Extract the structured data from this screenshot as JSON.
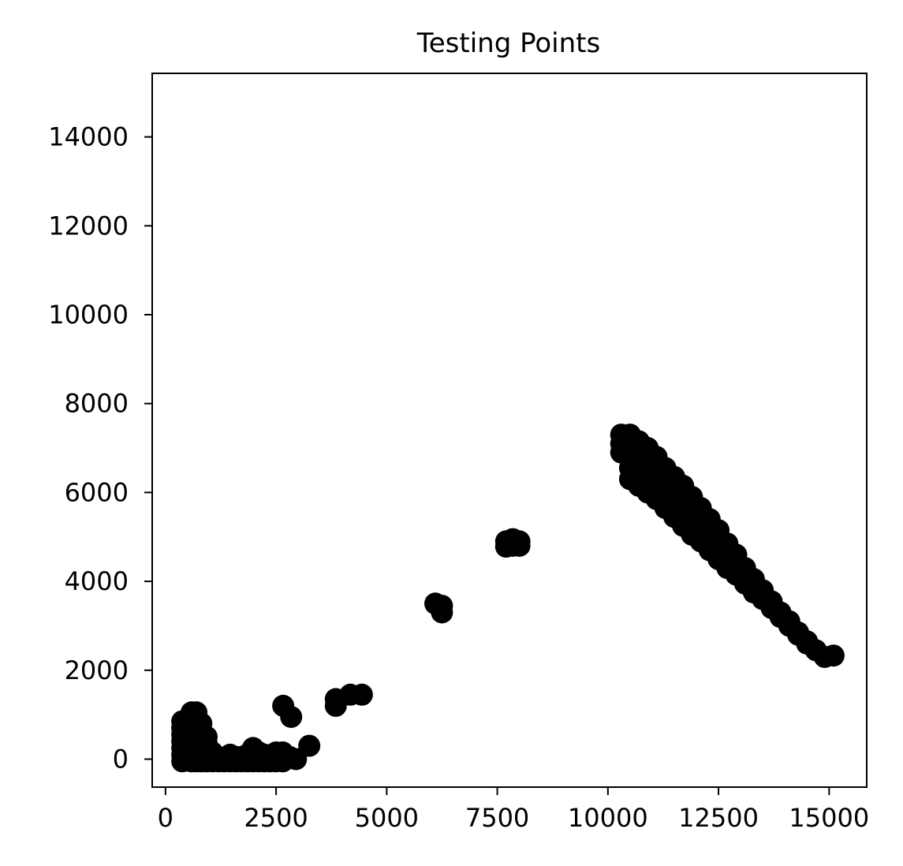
{
  "chart_data": {
    "type": "scatter",
    "title": "Testing Points",
    "xlabel": "",
    "ylabel": "",
    "xlim": [
      -300,
      15850
    ],
    "ylim": [
      -630,
      15430
    ],
    "x_ticks": [
      0,
      2500,
      5000,
      7500,
      10000,
      12500,
      15000
    ],
    "y_ticks": [
      0,
      2000,
      4000,
      6000,
      8000,
      10000,
      12000,
      14000
    ],
    "grid": false,
    "legend": "none",
    "marker_color": "#000000",
    "series": [
      {
        "points": [
          [
            380,
            850
          ],
          [
            380,
            700
          ],
          [
            380,
            550
          ],
          [
            380,
            400
          ],
          [
            380,
            250
          ],
          [
            380,
            100
          ],
          [
            380,
            -50
          ],
          [
            480,
            750
          ],
          [
            480,
            600
          ],
          [
            480,
            450
          ],
          [
            480,
            300
          ],
          [
            480,
            150
          ],
          [
            480,
            0
          ],
          [
            590,
            1050
          ],
          [
            590,
            900
          ],
          [
            590,
            750
          ],
          [
            590,
            600
          ],
          [
            590,
            150
          ],
          [
            590,
            -50
          ],
          [
            700,
            1050
          ],
          [
            700,
            900
          ],
          [
            700,
            750
          ],
          [
            700,
            600
          ],
          [
            700,
            450
          ],
          [
            700,
            300
          ],
          [
            700,
            -50
          ],
          [
            810,
            800
          ],
          [
            810,
            650
          ],
          [
            810,
            500
          ],
          [
            810,
            350
          ],
          [
            810,
            -50
          ],
          [
            930,
            500
          ],
          [
            930,
            350
          ],
          [
            930,
            200
          ],
          [
            930,
            -50
          ],
          [
            1060,
            150
          ],
          [
            1060,
            -50
          ],
          [
            1200,
            0
          ],
          [
            1200,
            -50
          ],
          [
            1330,
            0
          ],
          [
            1330,
            -50
          ],
          [
            1460,
            100
          ],
          [
            1460,
            -50
          ],
          [
            1590,
            50
          ],
          [
            1590,
            -50
          ],
          [
            1720,
            50
          ],
          [
            1720,
            -50
          ],
          [
            1850,
            100
          ],
          [
            1850,
            -50
          ],
          [
            1980,
            250
          ],
          [
            1980,
            100
          ],
          [
            1980,
            -50
          ],
          [
            2110,
            150
          ],
          [
            2110,
            -50
          ],
          [
            2240,
            100
          ],
          [
            2240,
            -50
          ],
          [
            2370,
            50
          ],
          [
            2370,
            -50
          ],
          [
            2500,
            150
          ],
          [
            2500,
            -50
          ],
          [
            2650,
            150
          ],
          [
            2650,
            -50
          ],
          [
            2800,
            50
          ],
          [
            2950,
            0
          ],
          [
            2660,
            1200
          ],
          [
            2840,
            950
          ],
          [
            3250,
            300
          ],
          [
            3850,
            1350
          ],
          [
            3850,
            1200
          ],
          [
            4180,
            1450
          ],
          [
            4440,
            1450
          ],
          [
            6100,
            3500
          ],
          [
            6250,
            3450
          ],
          [
            6250,
            3300
          ],
          [
            7700,
            4900
          ],
          [
            7700,
            4780
          ],
          [
            7850,
            4950
          ],
          [
            7850,
            4800
          ],
          [
            8000,
            4900
          ],
          [
            8000,
            4800
          ],
          [
            10300,
            7300
          ],
          [
            10300,
            7100
          ],
          [
            10300,
            6900
          ],
          [
            10500,
            7300
          ],
          [
            10500,
            7050
          ],
          [
            10500,
            6800
          ],
          [
            10500,
            6550
          ],
          [
            10500,
            6300
          ],
          [
            10700,
            7150
          ],
          [
            10700,
            6900
          ],
          [
            10700,
            6650
          ],
          [
            10700,
            6400
          ],
          [
            10700,
            6150
          ],
          [
            10900,
            7000
          ],
          [
            10900,
            6750
          ],
          [
            10900,
            6500
          ],
          [
            10900,
            6250
          ],
          [
            10900,
            6000
          ],
          [
            11100,
            6800
          ],
          [
            11100,
            6550
          ],
          [
            11100,
            6300
          ],
          [
            11100,
            6050
          ],
          [
            11100,
            5850
          ],
          [
            11300,
            6550
          ],
          [
            11300,
            6300
          ],
          [
            11300,
            6050
          ],
          [
            11300,
            5800
          ],
          [
            11300,
            5650
          ],
          [
            11500,
            6350
          ],
          [
            11500,
            6100
          ],
          [
            11500,
            5850
          ],
          [
            11500,
            5600
          ],
          [
            11500,
            5450
          ],
          [
            11700,
            6150
          ],
          [
            11700,
            5900
          ],
          [
            11700,
            5650
          ],
          [
            11700,
            5400
          ],
          [
            11700,
            5250
          ],
          [
            11900,
            5900
          ],
          [
            11900,
            5650
          ],
          [
            11900,
            5400
          ],
          [
            11900,
            5150
          ],
          [
            11900,
            5050
          ],
          [
            12100,
            5650
          ],
          [
            12100,
            5400
          ],
          [
            12100,
            5150
          ],
          [
            12100,
            4900
          ],
          [
            12300,
            5400
          ],
          [
            12300,
            5150
          ],
          [
            12300,
            4900
          ],
          [
            12300,
            4700
          ],
          [
            12500,
            5150
          ],
          [
            12500,
            4900
          ],
          [
            12500,
            4650
          ],
          [
            12500,
            4500
          ],
          [
            12700,
            4850
          ],
          [
            12700,
            4600
          ],
          [
            12700,
            4400
          ],
          [
            12700,
            4300
          ],
          [
            12900,
            4600
          ],
          [
            12900,
            4400
          ],
          [
            12900,
            4150
          ],
          [
            13100,
            4300
          ],
          [
            13100,
            4100
          ],
          [
            13100,
            3950
          ],
          [
            13300,
            4050
          ],
          [
            13300,
            3850
          ],
          [
            13300,
            3750
          ],
          [
            13500,
            3800
          ],
          [
            13500,
            3600
          ],
          [
            13700,
            3550
          ],
          [
            13700,
            3400
          ],
          [
            13900,
            3300
          ],
          [
            13900,
            3200
          ],
          [
            14100,
            3100
          ],
          [
            14100,
            3000
          ],
          [
            14300,
            2850
          ],
          [
            14300,
            2800
          ],
          [
            14500,
            2650
          ],
          [
            14500,
            2600
          ],
          [
            14700,
            2450
          ],
          [
            14900,
            2300
          ],
          [
            15100,
            2330
          ]
        ]
      }
    ]
  }
}
